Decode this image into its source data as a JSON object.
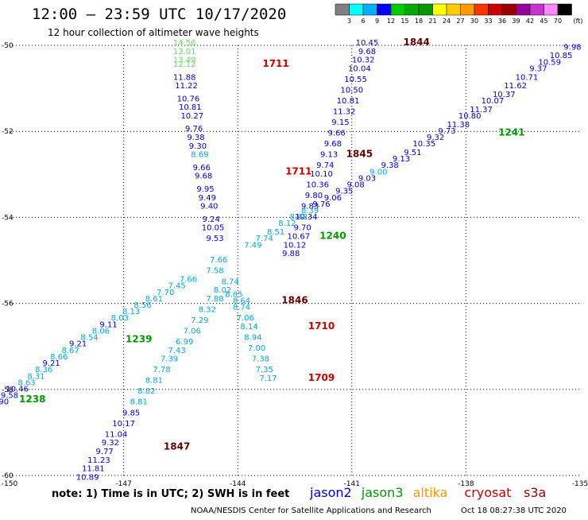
{
  "title": "12:00 – 23:59 UTC 10/17/2020",
  "subtitle": "12 hour collection of altimeter wave heights",
  "note": "note: 1) Time is in UTC; 2) SWH is in feet",
  "credit": "NOAA/NESDIS Center for Satellite Applications and Research",
  "timestamp": "Oct 18 08:27:38 UTC 2020",
  "colorbar": {
    "unit": "(ft)",
    "colors": [
      "#808080",
      "#00ffff",
      "#00b0ff",
      "#0000ff",
      "#00cc00",
      "#00aa00",
      "#009900",
      "#ffff00",
      "#ffcc00",
      "#ff9900",
      "#ff3300",
      "#cc0000",
      "#990000",
      "#990099",
      "#cc33cc",
      "#ff88ff",
      "#000000"
    ],
    "labels": [
      "3",
      "6",
      "9",
      "12",
      "15",
      "18",
      "21",
      "24",
      "27",
      "30",
      "33",
      "36",
      "39",
      "42",
      "45",
      "70"
    ]
  },
  "satellites": [
    {
      "name": "jason2",
      "color": "#0000cc"
    },
    {
      "name": "jason3",
      "color": "#009900"
    },
    {
      "name": "altika",
      "color": "#ff9900"
    },
    {
      "name": "cryosat",
      "color": "#cc0000"
    },
    {
      "name": "s3a",
      "color": "#990000"
    }
  ],
  "axes": {
    "lon_ticks": [
      "-150",
      "-147",
      "-144",
      "-141",
      "-138",
      "-135"
    ],
    "lat_ticks": [
      "-50",
      "-52",
      "-54",
      "-56",
      "-58",
      "-60"
    ]
  },
  "map_data": {
    "bounds": {
      "lon_min": -150,
      "lon_max": -135,
      "lat_min": -60,
      "lat_max": -50
    },
    "time_labels": [
      {
        "text": "1844",
        "lon": -139.3,
        "lat": -50.0,
        "color": "#660000"
      },
      {
        "text": "1711",
        "lon": -143.0,
        "lat": -50.5,
        "color": "#cc0000"
      },
      {
        "text": "1845",
        "lon": -140.8,
        "lat": -52.6,
        "color": "#660000"
      },
      {
        "text": "1241",
        "lon": -136.8,
        "lat": -52.1,
        "color": "#009900"
      },
      {
        "text": "1711",
        "lon": -142.4,
        "lat": -53.0,
        "color": "#cc0000"
      },
      {
        "text": "1240",
        "lon": -141.5,
        "lat": -54.5,
        "color": "#009900"
      },
      {
        "text": "1846",
        "lon": -142.5,
        "lat": -56.0,
        "color": "#660000"
      },
      {
        "text": "1710",
        "lon": -141.8,
        "lat": -56.6,
        "color": "#cc0000"
      },
      {
        "text": "1239",
        "lon": -146.6,
        "lat": -56.9,
        "color": "#009900"
      },
      {
        "text": "1709",
        "lon": -141.8,
        "lat": -57.8,
        "color": "#cc0000"
      },
      {
        "text": "1238",
        "lon": -149.4,
        "lat": -58.3,
        "color": "#009900"
      },
      {
        "text": "1847",
        "lon": -145.6,
        "lat": -59.4,
        "color": "#660000"
      }
    ],
    "points": [
      {
        "v": "14.56",
        "lon": -145.4,
        "lat": -50.0,
        "c": "#66dd66"
      },
      {
        "v": "13.01",
        "lon": -145.4,
        "lat": -50.2,
        "c": "#66dd66"
      },
      {
        "v": "13.49",
        "lon": -145.4,
        "lat": -50.4,
        "c": "#66dd66"
      },
      {
        "v": "12.12",
        "lon": -145.4,
        "lat": -50.5,
        "c": "#66dd66"
      },
      {
        "v": "11.88",
        "lon": -145.4,
        "lat": -50.8,
        "c": "#0000cc"
      },
      {
        "v": "11.22",
        "lon": -145.35,
        "lat": -51.0,
        "c": "#0000cc"
      },
      {
        "v": "10.76",
        "lon": -145.3,
        "lat": -51.3,
        "c": "#0000cc"
      },
      {
        "v": "10.81",
        "lon": -145.25,
        "lat": -51.5,
        "c": "#0000cc"
      },
      {
        "v": "10.27",
        "lon": -145.2,
        "lat": -51.7,
        "c": "#0000cc"
      },
      {
        "v": "9.76",
        "lon": -145.15,
        "lat": -52.0,
        "c": "#0000cc"
      },
      {
        "v": "9.38",
        "lon": -145.1,
        "lat": -52.2,
        "c": "#0000cc"
      },
      {
        "v": "9.30",
        "lon": -145.05,
        "lat": -52.4,
        "c": "#0000cc"
      },
      {
        "v": "8.69",
        "lon": -145.0,
        "lat": -52.6,
        "c": "#00aadd"
      },
      {
        "v": "9.66",
        "lon": -144.95,
        "lat": -52.9,
        "c": "#0000cc"
      },
      {
        "v": "9.68",
        "lon": -144.9,
        "lat": -53.1,
        "c": "#0000cc"
      },
      {
        "v": "9.95",
        "lon": -144.85,
        "lat": -53.4,
        "c": "#0000cc"
      },
      {
        "v": "9.49",
        "lon": -144.8,
        "lat": -53.6,
        "c": "#0000cc"
      },
      {
        "v": "9.40",
        "lon": -144.75,
        "lat": -53.8,
        "c": "#0000cc"
      },
      {
        "v": "9.24",
        "lon": -144.7,
        "lat": -54.1,
        "c": "#0000cc"
      },
      {
        "v": "10.05",
        "lon": -144.65,
        "lat": -54.3,
        "c": "#0000cc"
      },
      {
        "v": "9.53",
        "lon": -144.6,
        "lat": -54.55,
        "c": "#0000cc"
      },
      {
        "v": "10.45",
        "lon": -140.6,
        "lat": -50.0,
        "c": "#0000cc"
      },
      {
        "v": "9.68",
        "lon": -140.6,
        "lat": -50.2,
        "c": "#0000cc"
      },
      {
        "v": "10.32",
        "lon": -140.7,
        "lat": -50.4,
        "c": "#0000cc"
      },
      {
        "v": "10.04",
        "lon": -140.8,
        "lat": -50.6,
        "c": "#0000cc"
      },
      {
        "v": "10.55",
        "lon": -140.9,
        "lat": -50.85,
        "c": "#0000cc"
      },
      {
        "v": "10.50",
        "lon": -141.0,
        "lat": -51.1,
        "c": "#0000cc"
      },
      {
        "v": "10.81",
        "lon": -141.1,
        "lat": -51.35,
        "c": "#0000cc"
      },
      {
        "v": "11.32",
        "lon": -141.2,
        "lat": -51.6,
        "c": "#0000cc"
      },
      {
        "v": "9.15",
        "lon": -141.3,
        "lat": -51.85,
        "c": "#0000cc"
      },
      {
        "v": "9.66",
        "lon": -141.4,
        "lat": -52.1,
        "c": "#0000cc"
      },
      {
        "v": "9.68",
        "lon": -141.5,
        "lat": -52.35,
        "c": "#0000cc"
      },
      {
        "v": "9.13",
        "lon": -141.6,
        "lat": -52.6,
        "c": "#0000cc"
      },
      {
        "v": "9.74",
        "lon": -141.7,
        "lat": -52.85,
        "c": "#0000cc"
      },
      {
        "v": "10.10",
        "lon": -141.8,
        "lat": -53.05,
        "c": "#0000cc"
      },
      {
        "v": "10.36",
        "lon": -141.9,
        "lat": -53.3,
        "c": "#0000cc"
      },
      {
        "v": "9.80",
        "lon": -142.0,
        "lat": -53.55,
        "c": "#0000cc"
      },
      {
        "v": "9.83",
        "lon": -142.1,
        "lat": -53.8,
        "c": "#0000cc"
      },
      {
        "v": "10.34",
        "lon": -142.2,
        "lat": -54.05,
        "c": "#0000cc"
      },
      {
        "v": "9.70",
        "lon": -142.3,
        "lat": -54.3,
        "c": "#0000cc"
      },
      {
        "v": "10.67",
        "lon": -142.4,
        "lat": -54.5,
        "c": "#0000cc"
      },
      {
        "v": "10.12",
        "lon": -142.5,
        "lat": -54.7,
        "c": "#0000cc"
      },
      {
        "v": "9.88",
        "lon": -142.6,
        "lat": -54.9,
        "c": "#0000cc"
      },
      {
        "v": "9.98",
        "lon": -135.2,
        "lat": -50.1,
        "c": "#0000cc"
      },
      {
        "v": "10.85",
        "lon": -135.5,
        "lat": -50.3,
        "c": "#0000cc"
      },
      {
        "v": "10.59",
        "lon": -135.8,
        "lat": -50.45,
        "c": "#0000cc"
      },
      {
        "v": "9.37",
        "lon": -136.1,
        "lat": -50.6,
        "c": "#0000cc"
      },
      {
        "v": "10.71",
        "lon": -136.4,
        "lat": -50.8,
        "c": "#0000cc"
      },
      {
        "v": "11.62",
        "lon": -136.7,
        "lat": -51.0,
        "c": "#0000cc"
      },
      {
        "v": "10.37",
        "lon": -137.0,
        "lat": -51.2,
        "c": "#0000cc"
      },
      {
        "v": "10.07",
        "lon": -137.3,
        "lat": -51.35,
        "c": "#0000cc"
      },
      {
        "v": "11.37",
        "lon": -137.6,
        "lat": -51.55,
        "c": "#0000cc"
      },
      {
        "v": "10.80",
        "lon": -137.9,
        "lat": -51.7,
        "c": "#0000cc"
      },
      {
        "v": "11.38",
        "lon": -138.2,
        "lat": -51.9,
        "c": "#0000cc"
      },
      {
        "v": "9.73",
        "lon": -138.5,
        "lat": -52.05,
        "c": "#0000cc"
      },
      {
        "v": "9.32",
        "lon": -138.8,
        "lat": -52.2,
        "c": "#0000cc"
      },
      {
        "v": "10.35",
        "lon": -139.1,
        "lat": -52.35,
        "c": "#0000cc"
      },
      {
        "v": "9.51",
        "lon": -139.4,
        "lat": -52.55,
        "c": "#0000cc"
      },
      {
        "v": "9.13",
        "lon": -139.7,
        "lat": -52.7,
        "c": "#0000cc"
      },
      {
        "v": "9.38",
        "lon": -140.0,
        "lat": -52.85,
        "c": "#0000cc"
      },
      {
        "v": "9.00",
        "lon": -140.3,
        "lat": -53.0,
        "c": "#00aadd"
      },
      {
        "v": "9.03",
        "lon": -140.6,
        "lat": -53.15,
        "c": "#0000cc"
      },
      {
        "v": "9.08",
        "lon": -140.9,
        "lat": -53.3,
        "c": "#0000cc"
      },
      {
        "v": "9.35",
        "lon": -141.2,
        "lat": -53.45,
        "c": "#0000cc"
      },
      {
        "v": "9.06",
        "lon": -141.5,
        "lat": -53.6,
        "c": "#0000cc"
      },
      {
        "v": "9.76",
        "lon": -141.8,
        "lat": -53.75,
        "c": "#0000cc"
      },
      {
        "v": "8.39",
        "lon": -142.1,
        "lat": -53.9,
        "c": "#00aadd"
      },
      {
        "v": "8.68",
        "lon": -142.4,
        "lat": -54.05,
        "c": "#00aadd"
      },
      {
        "v": "8.12",
        "lon": -142.7,
        "lat": -54.2,
        "c": "#00aadd"
      },
      {
        "v": "8.51",
        "lon": -143.0,
        "lat": -54.4,
        "c": "#00aadd"
      },
      {
        "v": "7.74",
        "lon": -143.3,
        "lat": -54.55,
        "c": "#00aadd"
      },
      {
        "v": "7.49",
        "lon": -143.6,
        "lat": -54.7,
        "c": "#00aadd"
      },
      {
        "v": "7.66",
        "lon": -145.3,
        "lat": -55.5,
        "c": "#00aadd"
      },
      {
        "v": "7.45",
        "lon": -145.6,
        "lat": -55.65,
        "c": "#00aadd"
      },
      {
        "v": "7.70",
        "lon": -145.9,
        "lat": -55.8,
        "c": "#00aadd"
      },
      {
        "v": "8.61",
        "lon": -146.2,
        "lat": -55.95,
        "c": "#00aadd"
      },
      {
        "v": "8.56",
        "lon": -146.5,
        "lat": -56.1,
        "c": "#00aadd"
      },
      {
        "v": "8.13",
        "lon": -146.8,
        "lat": -56.25,
        "c": "#00aadd"
      },
      {
        "v": "8.03",
        "lon": -147.1,
        "lat": -56.4,
        "c": "#00aadd"
      },
      {
        "v": "9.11",
        "lon": -147.4,
        "lat": -56.55,
        "c": "#0000cc"
      },
      {
        "v": "8.06",
        "lon": -147.6,
        "lat": -56.7,
        "c": "#00aadd"
      },
      {
        "v": "8.54",
        "lon": -147.9,
        "lat": -56.85,
        "c": "#00aadd"
      },
      {
        "v": "9.21",
        "lon": -148.2,
        "lat": -57.0,
        "c": "#0000cc"
      },
      {
        "v": "8.67",
        "lon": -148.4,
        "lat": -57.15,
        "c": "#00aadd"
      },
      {
        "v": "8.66",
        "lon": -148.7,
        "lat": -57.3,
        "c": "#00aadd"
      },
      {
        "v": "9.21",
        "lon": -148.9,
        "lat": -57.45,
        "c": "#0000cc"
      },
      {
        "v": "8.36",
        "lon": -149.1,
        "lat": -57.6,
        "c": "#00aadd"
      },
      {
        "v": "8.31",
        "lon": -149.3,
        "lat": -57.75,
        "c": "#00aadd"
      },
      {
        "v": "8.63",
        "lon": -149.55,
        "lat": -57.9,
        "c": "#00aadd"
      },
      {
        "v": "10.46",
        "lon": -149.8,
        "lat": -58.05,
        "c": "#0000cc"
      },
      {
        "v": "9.58",
        "lon": -150.0,
        "lat": -58.2,
        "c": "#0000cc"
      },
      {
        "v": "9.90",
        "lon": -150.25,
        "lat": -58.35,
        "c": "#0000cc"
      },
      {
        "v": "7.66",
        "lon": -144.5,
        "lat": -55.05,
        "c": "#00aadd"
      },
      {
        "v": "7.58",
        "lon": -144.6,
        "lat": -55.3,
        "c": "#00aadd"
      },
      {
        "v": "8.74",
        "lon": -144.2,
        "lat": -55.55,
        "c": "#00aadd"
      },
      {
        "v": "8.02",
        "lon": -144.4,
        "lat": -55.75,
        "c": "#00aadd"
      },
      {
        "v": "8.85",
        "lon": -144.1,
        "lat": -55.85,
        "c": "#00aadd"
      },
      {
        "v": "7.88",
        "lon": -144.6,
        "lat": -55.95,
        "c": "#00aadd"
      },
      {
        "v": "8.64",
        "lon": -143.9,
        "lat": -56.0,
        "c": "#00aadd"
      },
      {
        "v": "8.32",
        "lon": -144.8,
        "lat": -56.2,
        "c": "#00aadd"
      },
      {
        "v": "8.74",
        "lon": -143.9,
        "lat": -56.15,
        "c": "#00aadd"
      },
      {
        "v": "7.29",
        "lon": -145.0,
        "lat": -56.45,
        "c": "#00aadd"
      },
      {
        "v": "7.06",
        "lon": -143.8,
        "lat": -56.4,
        "c": "#00aadd"
      },
      {
        "v": "7.06",
        "lon": -145.2,
        "lat": -56.7,
        "c": "#00aadd"
      },
      {
        "v": "8.14",
        "lon": -143.7,
        "lat": -56.6,
        "c": "#00aadd"
      },
      {
        "v": "6.99",
        "lon": -145.4,
        "lat": -56.95,
        "c": "#00aadd"
      },
      {
        "v": "8.94",
        "lon": -143.6,
        "lat": -56.85,
        "c": "#00aadd"
      },
      {
        "v": "7.43",
        "lon": -145.6,
        "lat": -57.15,
        "c": "#00aadd"
      },
      {
        "v": "7.00",
        "lon": -143.5,
        "lat": -57.1,
        "c": "#00aadd"
      },
      {
        "v": "7.39",
        "lon": -145.8,
        "lat": -57.35,
        "c": "#00aadd"
      },
      {
        "v": "7.38",
        "lon": -143.4,
        "lat": -57.35,
        "c": "#00aadd"
      },
      {
        "v": "7.78",
        "lon": -146.0,
        "lat": -57.6,
        "c": "#00aadd"
      },
      {
        "v": "7.35",
        "lon": -143.3,
        "lat": -57.6,
        "c": "#00aadd"
      },
      {
        "v": "8.81",
        "lon": -146.2,
        "lat": -57.85,
        "c": "#00aadd"
      },
      {
        "v": "7.17",
        "lon": -143.2,
        "lat": -57.8,
        "c": "#00aadd"
      },
      {
        "v": "8.82",
        "lon": -146.4,
        "lat": -58.1,
        "c": "#00aadd"
      },
      {
        "v": "8.81",
        "lon": -146.6,
        "lat": -58.35,
        "c": "#00aadd"
      },
      {
        "v": "9.85",
        "lon": -146.8,
        "lat": -58.6,
        "c": "#0000cc"
      },
      {
        "v": "10.17",
        "lon": -147.0,
        "lat": -58.85,
        "c": "#0000cc"
      },
      {
        "v": "11.04",
        "lon": -147.2,
        "lat": -59.1,
        "c": "#0000cc"
      },
      {
        "v": "9.32",
        "lon": -147.35,
        "lat": -59.3,
        "c": "#0000cc"
      },
      {
        "v": "9.77",
        "lon": -147.5,
        "lat": -59.5,
        "c": "#0000cc"
      },
      {
        "v": "11.23",
        "lon": -147.65,
        "lat": -59.7,
        "c": "#0000cc"
      },
      {
        "v": "11.81",
        "lon": -147.8,
        "lat": -59.9,
        "c": "#0000cc"
      },
      {
        "v": "10.89",
        "lon": -147.95,
        "lat": -60.1,
        "c": "#0000cc"
      }
    ]
  }
}
